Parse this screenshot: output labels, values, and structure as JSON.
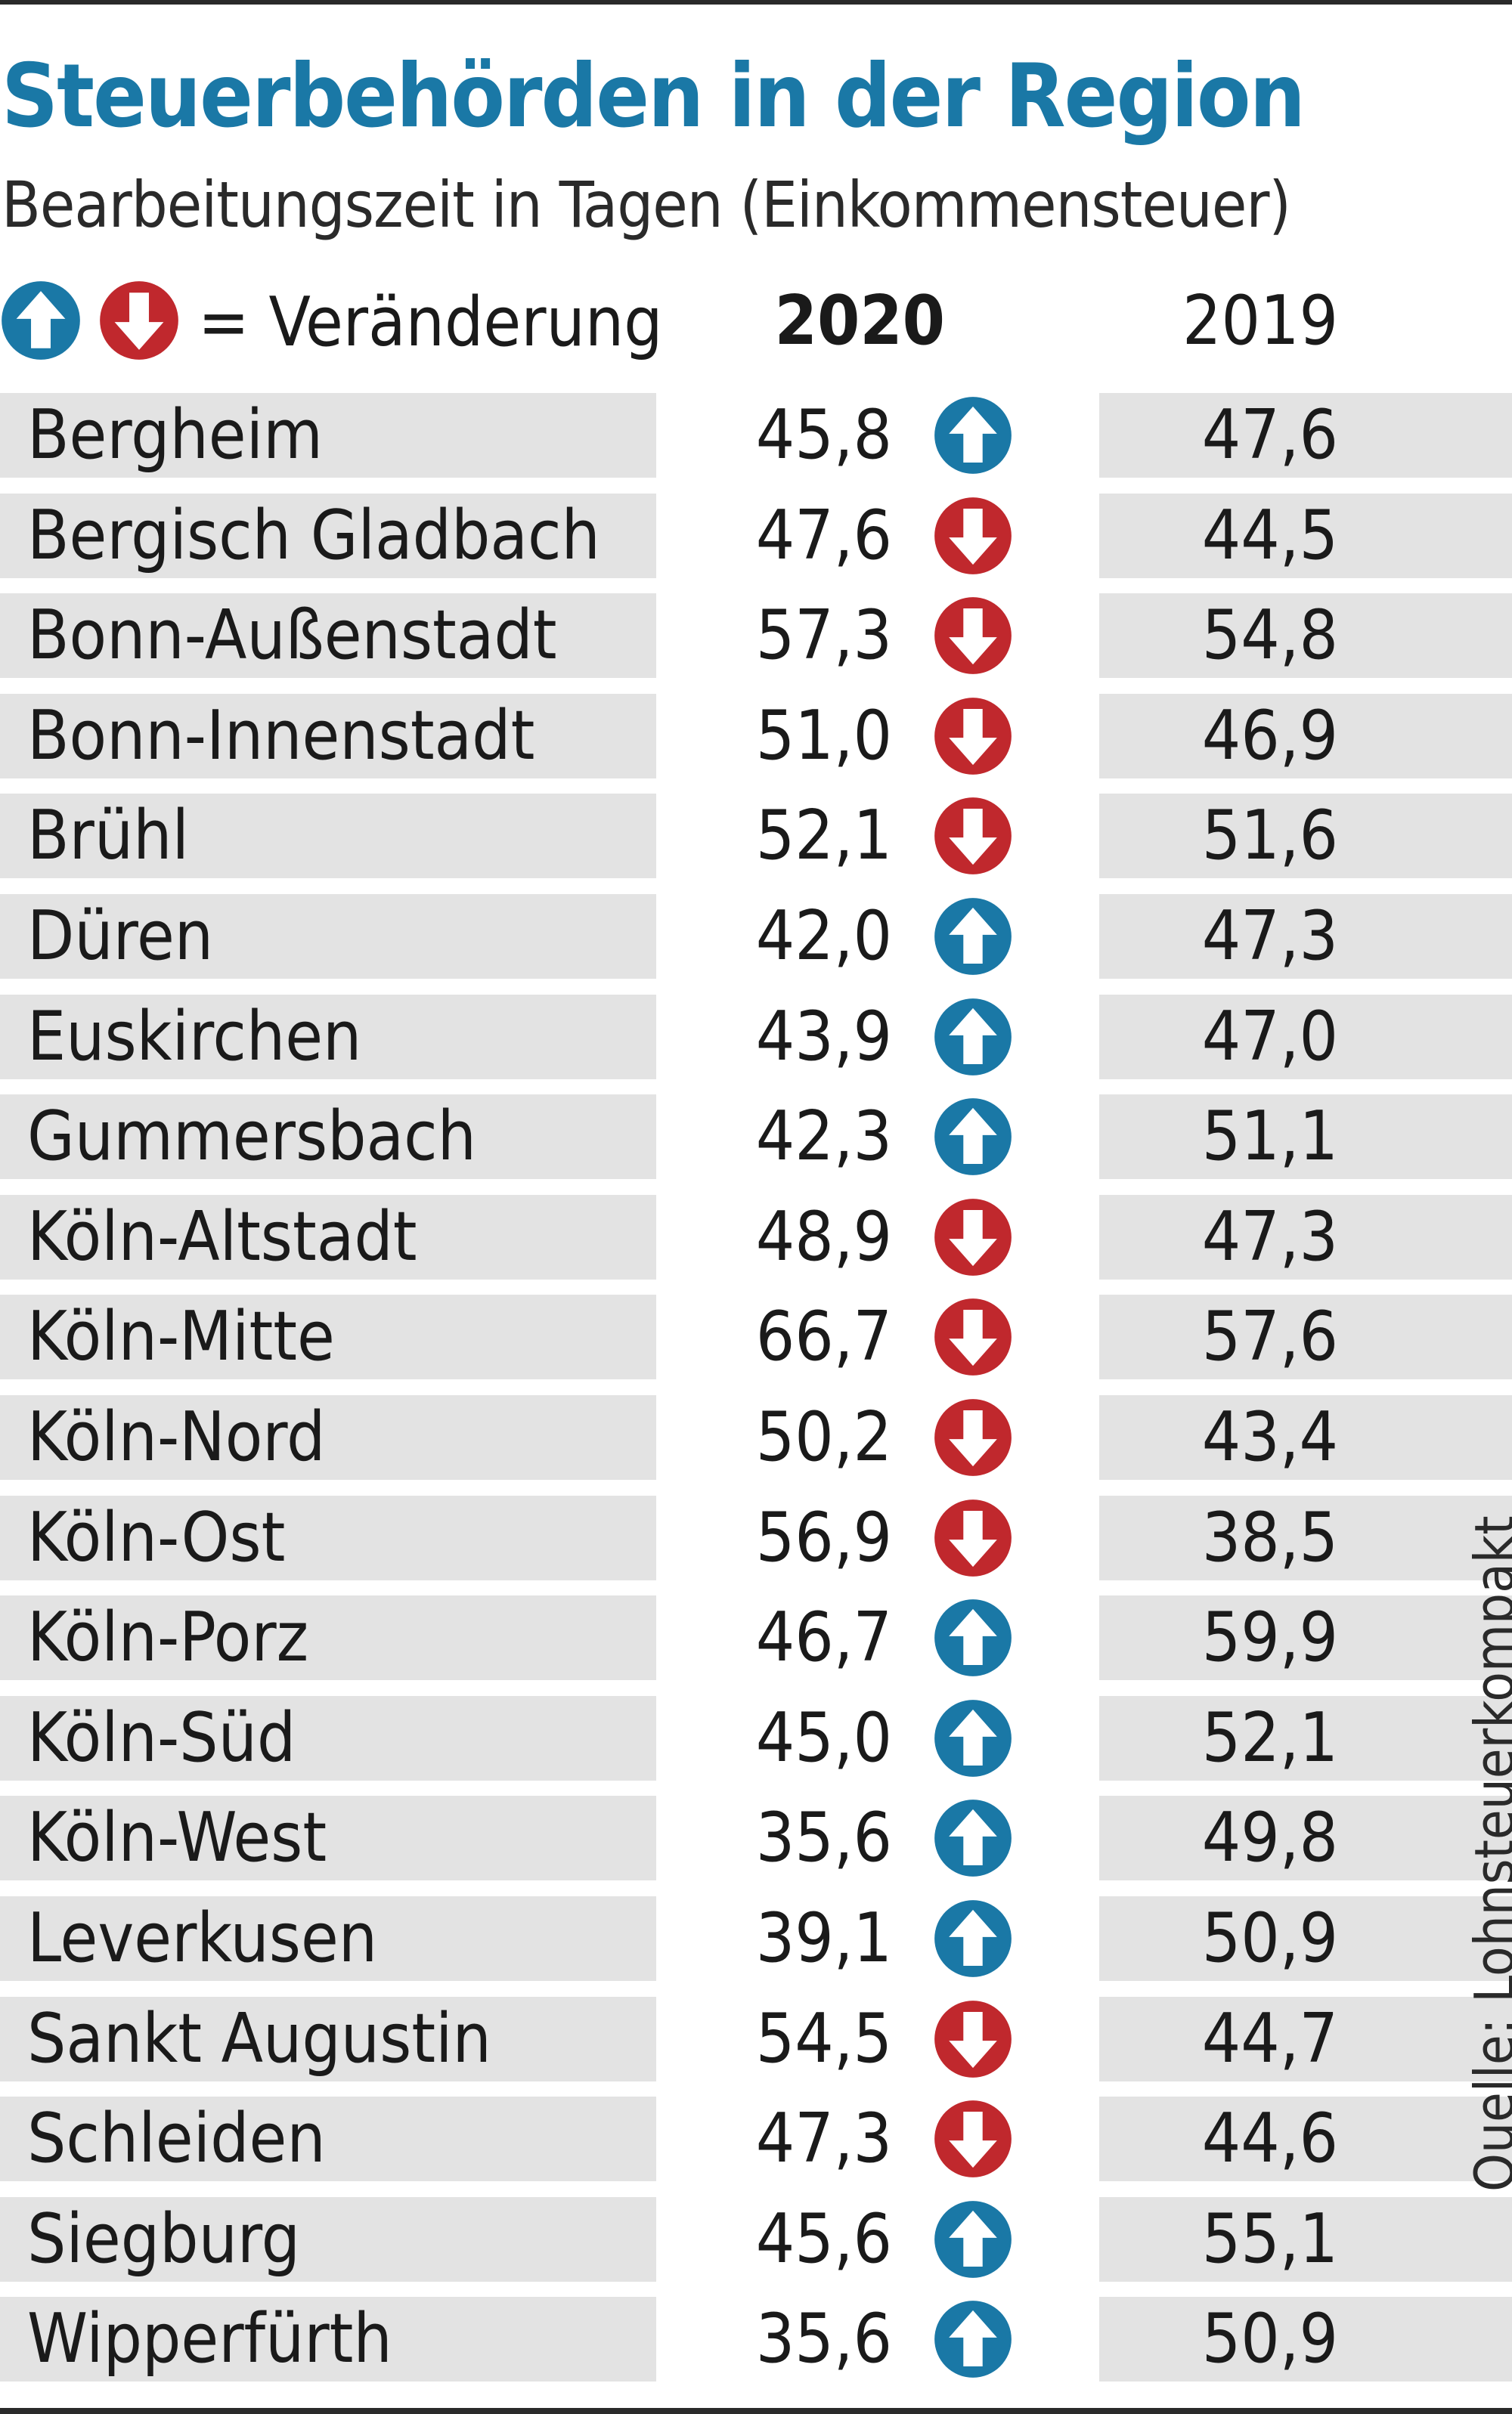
{
  "title": "Steuerbehörden in der Region",
  "subtitle": "Bearbeitungszeit in Tagen (Einkommensteuer)",
  "legend": {
    "text": "= Veränderung",
    "up_icon": "arrow-up-circle-icon",
    "down_icon": "arrow-down-circle-icon"
  },
  "colors": {
    "title": "#1a78a6",
    "up": "#1a78a6",
    "down": "#c0282d",
    "row_bg": "#e3e3e3"
  },
  "chart_data": {
    "type": "table",
    "title": "Steuerbehörden in der Region",
    "subtitle": "Bearbeitungszeit in Tagen (Einkommensteuer)",
    "columns": [
      "",
      "2020",
      "= Veränderung",
      "2019"
    ],
    "rows": [
      {
        "name": "Bergheim",
        "v2020": "45,8",
        "change": "up",
        "v2019": "47,6"
      },
      {
        "name": "Bergisch Gladbach",
        "v2020": "47,6",
        "change": "down",
        "v2019": "44,5"
      },
      {
        "name": "Bonn-Außenstadt",
        "v2020": "57,3",
        "change": "down",
        "v2019": "54,8"
      },
      {
        "name": "Bonn-Innenstadt",
        "v2020": "51,0",
        "change": "down",
        "v2019": "46,9"
      },
      {
        "name": "Brühl",
        "v2020": "52,1",
        "change": "down",
        "v2019": "51,6"
      },
      {
        "name": "Düren",
        "v2020": "42,0",
        "change": "up",
        "v2019": "47,3"
      },
      {
        "name": "Euskirchen",
        "v2020": "43,9",
        "change": "up",
        "v2019": "47,0"
      },
      {
        "name": "Gummersbach",
        "v2020": "42,3",
        "change": "up",
        "v2019": "51,1"
      },
      {
        "name": "Köln-Altstadt",
        "v2020": "48,9",
        "change": "down",
        "v2019": "47,3"
      },
      {
        "name": "Köln-Mitte",
        "v2020": "66,7",
        "change": "down",
        "v2019": "57,6"
      },
      {
        "name": "Köln-Nord",
        "v2020": "50,2",
        "change": "down",
        "v2019": "43,4"
      },
      {
        "name": "Köln-Ost",
        "v2020": "56,9",
        "change": "down",
        "v2019": "38,5"
      },
      {
        "name": "Köln-Porz",
        "v2020": "46,7",
        "change": "up",
        "v2019": "59,9"
      },
      {
        "name": "Köln-Süd",
        "v2020": "45,0",
        "change": "up",
        "v2019": "52,1"
      },
      {
        "name": "Köln-West",
        "v2020": "35,6",
        "change": "up",
        "v2019": "49,8"
      },
      {
        "name": "Leverkusen",
        "v2020": "39,1",
        "change": "up",
        "v2019": "50,9"
      },
      {
        "name": "Sankt Augustin",
        "v2020": "54,5",
        "change": "down",
        "v2019": "44,7"
      },
      {
        "name": "Schleiden",
        "v2020": "47,3",
        "change": "down",
        "v2019": "44,6"
      },
      {
        "name": "Siegburg",
        "v2020": "45,6",
        "change": "up",
        "v2019": "55,1"
      },
      {
        "name": "Wipperfürth",
        "v2020": "35,6",
        "change": "up",
        "v2019": "50,9"
      }
    ],
    "source": "Quelle: Lohnsteuerkompakt"
  }
}
